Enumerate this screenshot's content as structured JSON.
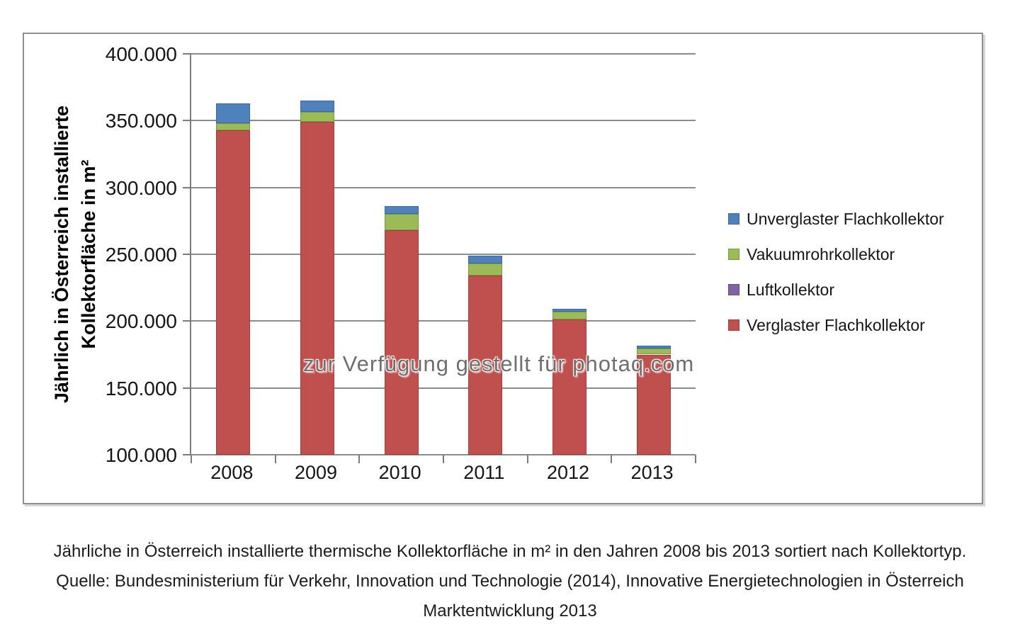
{
  "watermark": "zur Verfügung gestellt für photaq.com",
  "y_axis": {
    "title_line1": "Jährlich in Österreich installierte",
    "title_line2": "Kollektorfläche in m²",
    "ticks": [
      "400.000",
      "350.000",
      "300.000",
      "250.000",
      "200.000",
      "150.000",
      "100.000"
    ]
  },
  "chart_data": {
    "type": "bar",
    "stacked": true,
    "categories": [
      "2008",
      "2009",
      "2010",
      "2011",
      "2012",
      "2013"
    ],
    "series": [
      {
        "name": "Verglaster Flachkollektor",
        "color": "#C0504D",
        "border": "#9E3E3B",
        "values": [
          343000,
          349000,
          268000,
          234000,
          201000,
          175000
        ]
      },
      {
        "name": "Luftkollektor",
        "color": "#8064A2",
        "border": "#644C87",
        "values": [
          0,
          0,
          0,
          0,
          0,
          0
        ]
      },
      {
        "name": "Vakuumrohrkollektor",
        "color": "#9BBB59",
        "border": "#7A9940",
        "values": [
          5000,
          7500,
          12000,
          9000,
          6000,
          4500
        ]
      },
      {
        "name": "Unverglaster Flachkollektor",
        "color": "#4F81BD",
        "border": "#3A689F",
        "values": [
          15000,
          8500,
          6000,
          6000,
          2000,
          2000
        ]
      }
    ],
    "totals": [
      363000,
      365000,
      286000,
      249000,
      209000,
      181500
    ],
    "ylabel": "Jährlich in Österreich installierte Kollektorfläche in m²",
    "ylim": [
      100000,
      400000
    ],
    "ytick_step": 50000,
    "grid": true,
    "legend_position": "right"
  },
  "legend": {
    "items": [
      {
        "label": "Unverglaster Flachkollektor",
        "color": "#4F81BD",
        "border": "#3A689F"
      },
      {
        "label": "Vakuumrohrkollektor",
        "color": "#9BBB59",
        "border": "#7A9940"
      },
      {
        "label": "Luftkollektor",
        "color": "#8064A2",
        "border": "#644C87"
      },
      {
        "label": "Verglaster Flachkollektor",
        "color": "#C0504D",
        "border": "#9E3E3B"
      }
    ]
  },
  "caption": {
    "line1": "Jährliche in Österreich installierte thermische Kollektorfläche in m² in den Jahren 2008 bis 2013 sortiert nach Kollektortyp.",
    "line2": "Quelle: Bundesministerium für Verkehr, Innovation und Technologie (2014), Innovative Energietechnologien in Österreich",
    "line3": "Marktentwicklung 2013"
  }
}
